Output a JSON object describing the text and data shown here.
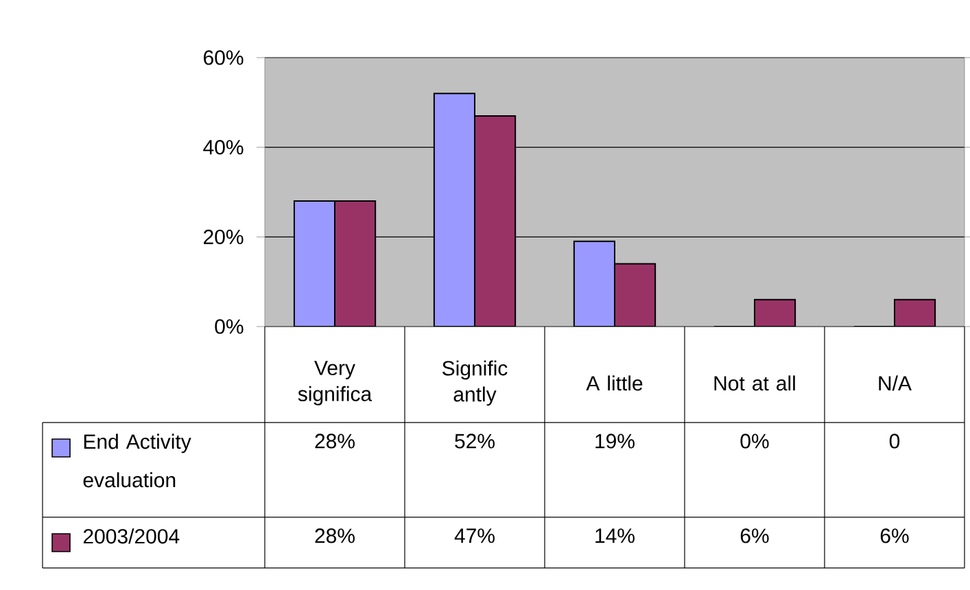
{
  "chart_data": {
    "type": "bar",
    "categories": [
      "Very significa",
      "Signific antly",
      "A little",
      "Not at all",
      "N/A"
    ],
    "series": [
      {
        "name": "End Activity evaluation",
        "color": "#9999ff",
        "values": [
          28,
          52,
          19,
          0,
          0
        ],
        "value_labels": [
          "28%",
          "52%",
          "19%",
          "0%",
          "0"
        ]
      },
      {
        "name": "2003/2004",
        "color": "#993366",
        "values": [
          28,
          47,
          14,
          6,
          6
        ],
        "value_labels": [
          "28%",
          "47%",
          "14%",
          "6%",
          "6%"
        ]
      }
    ],
    "ylim": [
      0,
      60
    ],
    "yticks": [
      {
        "value": 0,
        "label": "0%"
      },
      {
        "value": 20,
        "label": "20%"
      },
      {
        "value": 40,
        "label": "40%"
      },
      {
        "value": 60,
        "label": "60%"
      }
    ],
    "grid": "y",
    "legend": "bottom left"
  }
}
